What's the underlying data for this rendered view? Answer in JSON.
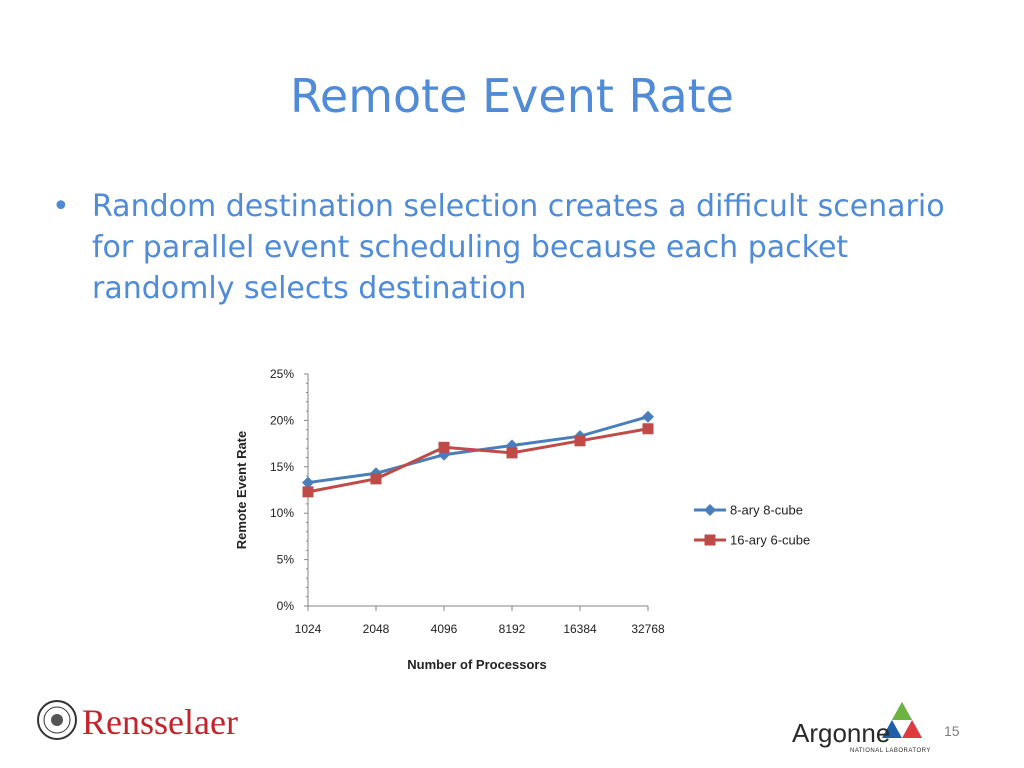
{
  "slide": {
    "title": "Remote Event Rate",
    "bullet": "Random destination selection creates a difficult scenario for parallel event scheduling because each packet randomly selects destination",
    "bullet_marker": "•",
    "page_number": "15"
  },
  "logos": {
    "left": "Rensselaer",
    "right": "Argonne",
    "right_sub": "NATIONAL LABORATORY"
  },
  "chart_data": {
    "type": "line",
    "categories": [
      "1024",
      "2048",
      "4096",
      "8192",
      "16384",
      "32768"
    ],
    "series": [
      {
        "name": "8-ary 8-cube",
        "values": [
          13.3,
          14.3,
          16.3,
          17.3,
          18.3,
          20.4
        ],
        "color": "#4a7ebb",
        "marker": "diamond"
      },
      {
        "name": "16-ary 6-cube",
        "values": [
          12.3,
          13.7,
          17.1,
          16.5,
          17.8,
          19.1
        ],
        "color": "#be4b48",
        "marker": "square"
      }
    ],
    "title": "",
    "xlabel": "Number of Processors",
    "ylabel": "Remote Event Rate",
    "ylim": [
      0,
      25
    ],
    "yticks": [
      "0%",
      "5%",
      "10%",
      "15%",
      "20%",
      "25%"
    ],
    "grid": false,
    "legend": "right"
  }
}
